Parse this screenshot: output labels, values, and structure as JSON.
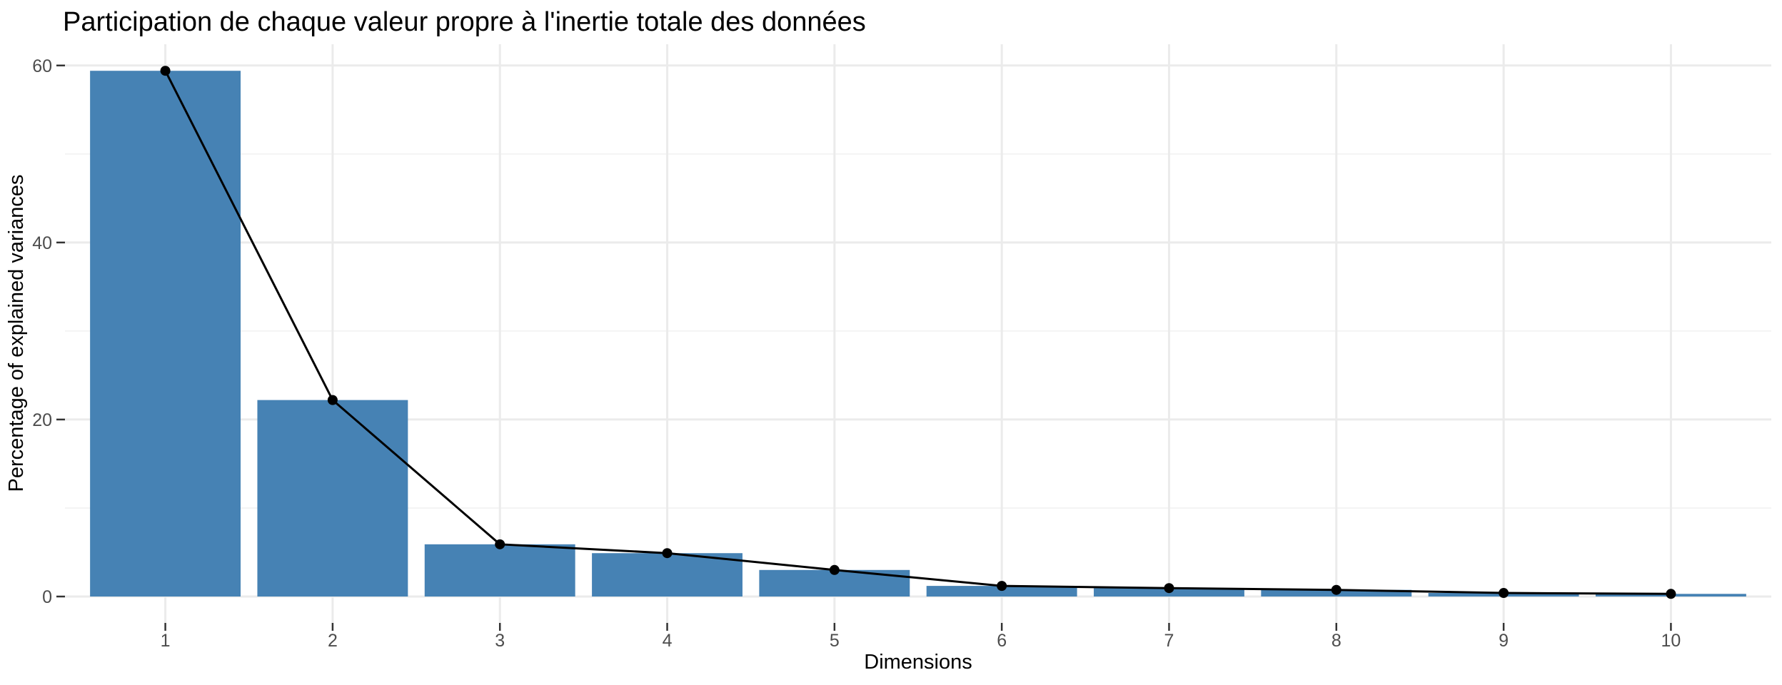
{
  "window": {
    "background": "#FFFFFF"
  },
  "chart_data": {
    "type": "bar",
    "overlay": "line-with-points",
    "title": "Participation de chaque valeur propre à l'inertie totale des données",
    "xlabel": "Dimensions",
    "ylabel": "Percentage of explained variances",
    "categories": [
      "1",
      "2",
      "3",
      "4",
      "5",
      "6",
      "7",
      "8",
      "9",
      "10"
    ],
    "values": [
      59.4,
      22.2,
      5.9,
      4.9,
      3.0,
      1.2,
      0.95,
      0.75,
      0.4,
      0.3
    ],
    "y_ticks": [
      0,
      20,
      40,
      60
    ],
    "y_minor_ticks": [
      10,
      30,
      50
    ],
    "ylim": [
      0,
      62.4
    ],
    "grid": true,
    "legend": "none",
    "colors": {
      "bar_fill": "#4682B4",
      "line": "#000000",
      "point": "#000000",
      "grid_major": "#EBEBEB",
      "grid_minor": "#F4F4F4",
      "tick_mark": "#333333",
      "tick_label": "#4D4D4D",
      "text": "#000000",
      "background": "#FFFFFF"
    }
  }
}
